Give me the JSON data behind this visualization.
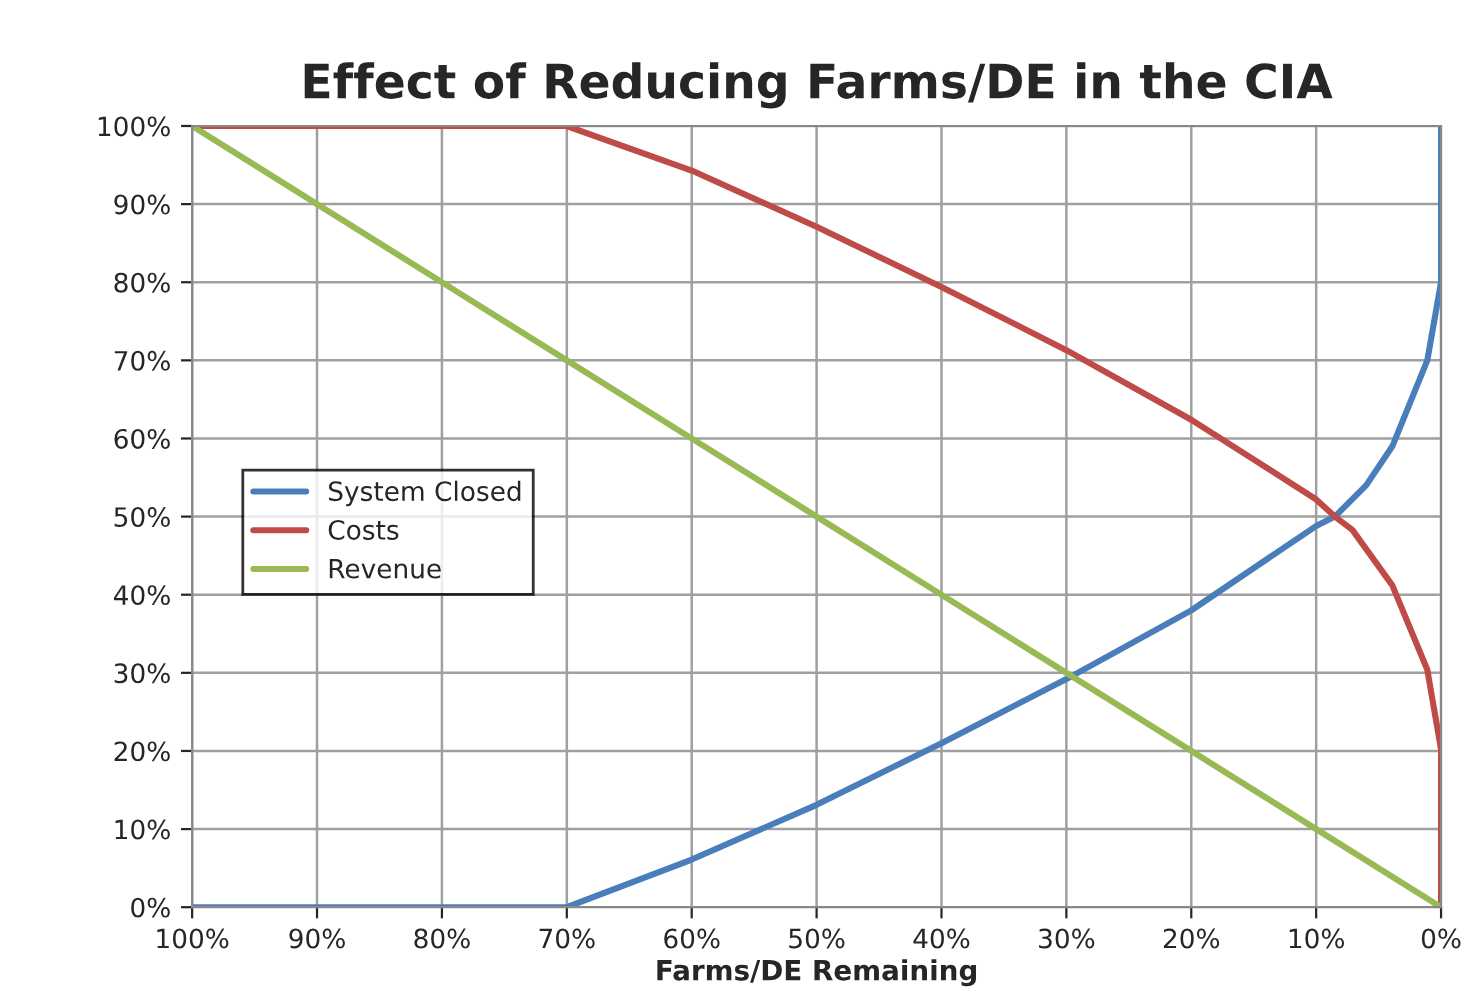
{
  "chart_data": {
    "type": "line",
    "title": "Effect of Reducing Farms/DE in the CIA",
    "xlabel": "Farms/DE Remaining",
    "xlim": [
      100,
      0
    ],
    "ylim": [
      0,
      100
    ],
    "xticks": [
      {
        "value": 100,
        "label": "100%"
      },
      {
        "value": 90,
        "label": "90%"
      },
      {
        "value": 80,
        "label": "80%"
      },
      {
        "value": 70,
        "label": "70%"
      },
      {
        "value": 60,
        "label": "60%"
      },
      {
        "value": 50,
        "label": "50%"
      },
      {
        "value": 40,
        "label": "40%"
      },
      {
        "value": 30,
        "label": "30%"
      },
      {
        "value": 20,
        "label": "20%"
      },
      {
        "value": 10,
        "label": "10%"
      },
      {
        "value": 0,
        "label": "0%"
      }
    ],
    "yticks": [
      {
        "value": 0,
        "label": "0%"
      },
      {
        "value": 10,
        "label": "10%"
      },
      {
        "value": 20,
        "label": "20%"
      },
      {
        "value": 30,
        "label": "30%"
      },
      {
        "value": 40,
        "label": "40%"
      },
      {
        "value": 50,
        "label": "50%"
      },
      {
        "value": 60,
        "label": "60%"
      },
      {
        "value": 70,
        "label": "70%"
      },
      {
        "value": 80,
        "label": "80%"
      },
      {
        "value": 90,
        "label": "90%"
      },
      {
        "value": 100,
        "label": "100%"
      }
    ],
    "grid": true,
    "legend": "left",
    "marker": "none",
    "line_style": "solid",
    "series": [
      {
        "name": "System Closed",
        "color": "#4a7ebb",
        "x": [
          100,
          90,
          80,
          70,
          60,
          50,
          40,
          30,
          20,
          10,
          8.5,
          6,
          3.9,
          1.1,
          0,
          0
        ],
        "values": [
          0,
          0,
          0,
          0,
          6.1,
          13.1,
          21,
          29.2,
          38,
          48.8,
          50,
          54,
          59,
          70,
          80,
          100
        ]
      },
      {
        "name": "Costs",
        "color": "#be4b48",
        "x": [
          100,
          90,
          80,
          70,
          60,
          50,
          40,
          30,
          20,
          10,
          8.5,
          7.1,
          3.9,
          1.1,
          0,
          0
        ],
        "values": [
          100,
          100,
          100,
          100,
          94.3,
          87.1,
          79.4,
          71.3,
          62.4,
          52.2,
          50,
          48.3,
          41.2,
          30.4,
          20.2,
          0
        ]
      },
      {
        "name": "Revenue",
        "color": "#98b954",
        "x": [
          100,
          90,
          80,
          70,
          60,
          50,
          40,
          30,
          20,
          10,
          0
        ],
        "values": [
          100,
          90,
          80,
          70,
          60,
          50,
          40,
          30,
          20,
          10,
          0
        ]
      }
    ]
  }
}
